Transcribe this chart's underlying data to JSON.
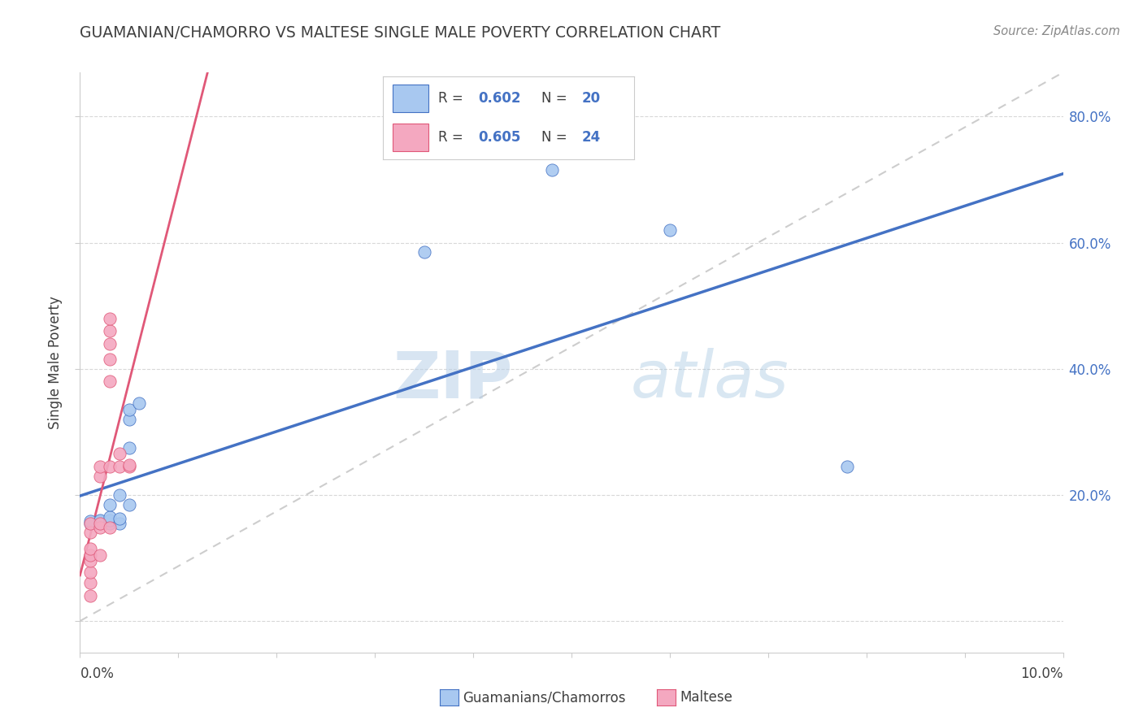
{
  "title": "GUAMANIAN/CHAMORRO VS MALTESE SINGLE MALE POVERTY CORRELATION CHART",
  "source": "Source: ZipAtlas.com",
  "ylabel": "Single Male Poverty",
  "watermark_zip": "ZIP",
  "watermark_atlas": "atlas",
  "blue_color": "#a8c8f0",
  "pink_color": "#f4a8c0",
  "blue_line_color": "#4472c4",
  "pink_line_color": "#e05878",
  "ref_line_color": "#c8c8c8",
  "background": "#ffffff",
  "guam_points": [
    [
      0.001,
      0.155
    ],
    [
      0.001,
      0.158
    ],
    [
      0.002,
      0.155
    ],
    [
      0.002,
      0.158
    ],
    [
      0.002,
      0.16
    ],
    [
      0.003,
      0.155
    ],
    [
      0.003,
      0.16
    ],
    [
      0.003,
      0.165
    ],
    [
      0.003,
      0.185
    ],
    [
      0.004,
      0.155
    ],
    [
      0.004,
      0.162
    ],
    [
      0.004,
      0.2
    ],
    [
      0.005,
      0.185
    ],
    [
      0.005,
      0.275
    ],
    [
      0.005,
      0.32
    ],
    [
      0.005,
      0.335
    ],
    [
      0.006,
      0.345
    ],
    [
      0.035,
      0.585
    ],
    [
      0.06,
      0.62
    ],
    [
      0.078,
      0.245
    ]
  ],
  "guam_outlier": [
    0.048,
    0.715
  ],
  "maltese_points": [
    [
      0.001,
      0.04
    ],
    [
      0.001,
      0.06
    ],
    [
      0.001,
      0.078
    ],
    [
      0.001,
      0.095
    ],
    [
      0.001,
      0.105
    ],
    [
      0.001,
      0.115
    ],
    [
      0.001,
      0.14
    ],
    [
      0.001,
      0.155
    ],
    [
      0.002,
      0.105
    ],
    [
      0.002,
      0.148
    ],
    [
      0.002,
      0.155
    ],
    [
      0.002,
      0.23
    ],
    [
      0.002,
      0.245
    ],
    [
      0.003,
      0.148
    ],
    [
      0.003,
      0.245
    ],
    [
      0.003,
      0.38
    ],
    [
      0.003,
      0.415
    ],
    [
      0.003,
      0.44
    ],
    [
      0.003,
      0.46
    ],
    [
      0.003,
      0.48
    ],
    [
      0.004,
      0.245
    ],
    [
      0.004,
      0.265
    ],
    [
      0.005,
      0.245
    ],
    [
      0.005,
      0.248
    ]
  ],
  "xlim": [
    0.0,
    0.1
  ],
  "ylim": [
    -0.05,
    0.87
  ],
  "yticks": [
    0.0,
    0.2,
    0.4,
    0.6,
    0.8
  ],
  "ytick_labels": [
    "",
    "20.0%",
    "40.0%",
    "60.0%",
    "80.0%"
  ],
  "xtick_positions": [
    0.0,
    0.01,
    0.02,
    0.03,
    0.04,
    0.05,
    0.06,
    0.07,
    0.08,
    0.09,
    0.1
  ],
  "marker_size": 120,
  "legend_r1": "R = 0.602",
  "legend_n1": "N = 20",
  "legend_r2": "R = 0.605",
  "legend_n2": "N = 24",
  "legend_label1": "Guamanians/Chamorros",
  "legend_label2": "Maltese",
  "blue_text": "#4472c4",
  "dark_text": "#404040"
}
